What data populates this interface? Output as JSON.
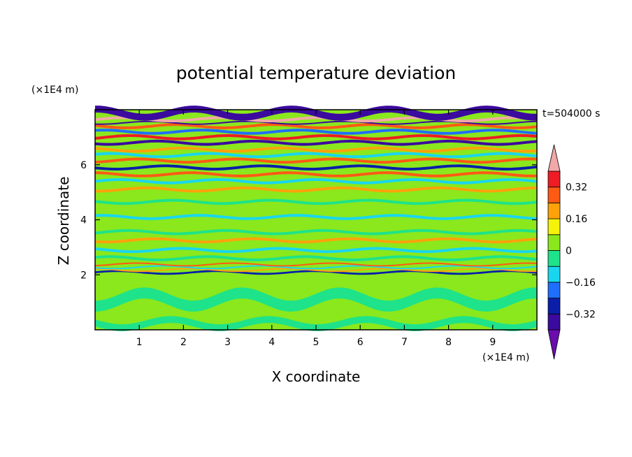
{
  "chart_data": {
    "type": "heatmap",
    "title": "potential temperature deviation",
    "xlabel": "X coordinate",
    "ylabel": "Z coordinate",
    "x_unit_label": "(×1E4 m)",
    "y_unit_label": "(×1E4 m)",
    "time_label": "t=504000 s",
    "xlim": [
      0,
      10
    ],
    "ylim": [
      0,
      8
    ],
    "x_ticks": [
      1,
      2,
      3,
      4,
      5,
      6,
      7,
      8,
      9
    ],
    "y_ticks": [
      2,
      4,
      6
    ],
    "colorbar": {
      "tick_values": [
        0.32,
        0.16,
        0,
        -0.16,
        -0.32
      ],
      "tick_labels": [
        "0.32",
        "0.16",
        "0",
        "−0.16",
        "−0.32"
      ],
      "levels": [
        -0.4,
        -0.32,
        -0.24,
        -0.16,
        -0.08,
        0,
        0.08,
        0.16,
        0.24,
        0.32,
        0.4
      ],
      "colors": [
        "#6a0dad",
        "#3b0a9e",
        "#0a1eaa",
        "#1f6fff",
        "#19d6f0",
        "#1ee38a",
        "#8ae81c",
        "#f6f30a",
        "#ffa20a",
        "#ff5a14",
        "#ee1c24",
        "#f2a8a8"
      ],
      "extend": "both"
    },
    "background_color": "#8ae81c",
    "bands": [
      {
        "z": [
          0.1,
          0.35
        ],
        "value": -0.02
      },
      {
        "z": [
          0.9,
          1.3
        ],
        "value": -0.02
      },
      {
        "z": [
          2.05,
          2.12
        ],
        "value": -0.3
      },
      {
        "z": [
          2.15,
          2.2
        ],
        "value": 0.2
      },
      {
        "z": [
          2.25,
          2.3
        ],
        "value": -0.1
      },
      {
        "z": [
          2.35,
          2.4
        ],
        "value": 0.24
      },
      {
        "z": [
          2.55,
          2.65
        ],
        "value": -0.05
      },
      {
        "z": [
          2.85,
          2.95
        ],
        "value": -0.1
      },
      {
        "z": [
          3.2,
          3.3
        ],
        "value": 0.18
      },
      {
        "z": [
          3.5,
          3.6
        ],
        "value": -0.03
      },
      {
        "z": [
          4.05,
          4.15
        ],
        "value": -0.1
      },
      {
        "z": [
          4.6,
          4.7
        ],
        "value": -0.04
      },
      {
        "z": [
          5.05,
          5.15
        ],
        "value": 0.2
      },
      {
        "z": [
          5.35,
          5.45
        ],
        "value": -0.1
      },
      {
        "z": [
          5.6,
          5.7
        ],
        "value": 0.3
      },
      {
        "z": [
          5.85,
          5.95
        ],
        "value": -0.32
      },
      {
        "z": [
          6.1,
          6.2
        ],
        "value": 0.24
      },
      {
        "z": [
          6.3,
          6.4
        ],
        "value": -0.12
      },
      {
        "z": [
          6.5,
          6.6
        ],
        "value": 0.16
      },
      {
        "z": [
          6.75,
          6.85
        ],
        "value": -0.34
      },
      {
        "z": [
          6.95,
          7.05
        ],
        "value": 0.34
      },
      {
        "z": [
          7.15,
          7.25
        ],
        "value": -0.2
      },
      {
        "z": [
          7.35,
          7.45
        ],
        "value": 0.26
      },
      {
        "z": [
          7.5,
          7.55
        ],
        "value": -0.38
      },
      {
        "z": [
          7.6,
          7.7
        ],
        "value": 0.4
      },
      {
        "z": [
          7.75,
          8.0
        ],
        "value": -0.38
      }
    ]
  }
}
